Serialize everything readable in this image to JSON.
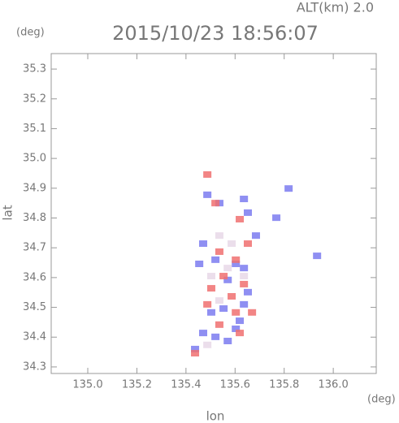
{
  "chart_data": {
    "type": "scatter",
    "title": "2015/10/23 18:56:07",
    "subtitle": "ALT(km) 2.0",
    "y_unit": "(deg)",
    "x_unit": "(deg)",
    "xlabel": "lon",
    "ylabel": "lat",
    "xlim": [
      134.851,
      136.175
    ],
    "ylim": [
      34.278,
      35.352
    ],
    "xticks": [
      {
        "value": 135,
        "label": "135.0"
      },
      {
        "value": 135.2,
        "label": "135.2"
      },
      {
        "value": 135.4,
        "label": "135.4"
      },
      {
        "value": 135.6,
        "label": "135.6"
      },
      {
        "value": 135.8,
        "label": "135.8"
      },
      {
        "value": 136,
        "label": "136.0"
      }
    ],
    "yticks": [
      34.3,
      34.4,
      34.5,
      34.6,
      34.7,
      34.8,
      34.9,
      {
        "value": 35,
        "label": "35.0"
      },
      35.1,
      35.2,
      35.3
    ],
    "series": [
      {
        "color": "#7b7bf0",
        "x": [
          135.487,
          135.536,
          135.636,
          135.652,
          135.47,
          135.52,
          135.603,
          135.636,
          135.503,
          135.553,
          135.619,
          135.636,
          135.47,
          135.52,
          135.57,
          135.603,
          135.437,
          135.652,
          135.454,
          135.57,
          135.685,
          135.934,
          135.818,
          135.768
        ],
        "values": [
          34.878,
          34.85,
          34.864,
          34.818,
          34.714,
          34.66,
          34.646,
          34.632,
          34.483,
          34.496,
          34.455,
          34.51,
          34.414,
          34.401,
          34.387,
          34.428,
          34.36,
          34.551,
          34.646,
          34.592,
          34.741,
          34.673,
          34.899,
          34.801
        ]
      },
      {
        "color": "#f07070",
        "x": [
          135.487,
          135.52,
          135.619,
          135.536,
          135.603,
          135.553,
          135.636,
          135.586,
          135.487,
          135.603,
          135.669,
          135.536,
          135.619,
          135.437,
          135.652,
          135.503
        ],
        "values": [
          34.946,
          34.85,
          34.796,
          34.687,
          34.66,
          34.605,
          34.578,
          34.537,
          34.51,
          34.483,
          34.483,
          34.442,
          34.414,
          34.346,
          34.714,
          34.564
        ]
      },
      {
        "color": "#e8d8e8",
        "x": [
          135.536,
          135.586,
          135.503,
          135.57,
          135.536,
          135.636,
          135.487
        ],
        "values": [
          34.741,
          34.714,
          34.605,
          34.632,
          34.523,
          34.605,
          34.374
        ]
      }
    ]
  }
}
